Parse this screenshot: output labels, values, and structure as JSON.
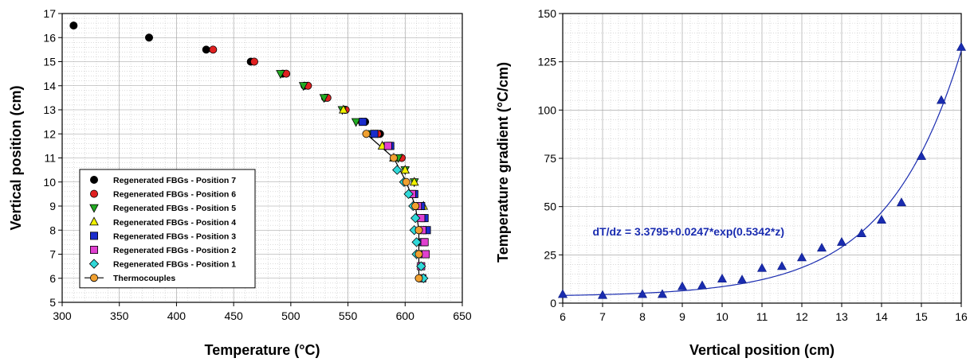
{
  "chart_data": [
    {
      "type": "scatter",
      "title": "",
      "xlabel": "Temperature (°C)",
      "ylabel": "Vertical position (cm)",
      "xlim": [
        300,
        650
      ],
      "ylim": [
        5,
        17
      ],
      "xticks": [
        300,
        350,
        400,
        450,
        500,
        550,
        600,
        650
      ],
      "yticks": [
        5,
        6,
        7,
        8,
        9,
        10,
        11,
        12,
        13,
        14,
        15,
        16,
        17
      ],
      "grid": true,
      "legend_position": "bottom-left",
      "series": [
        {
          "name": "Regenerated FBGs - Position 7",
          "marker": "circle",
          "color": "#000000",
          "points": [
            [
              310,
              16.5
            ],
            [
              376,
              16
            ],
            [
              426,
              15.5
            ],
            [
              465,
              15
            ],
            [
              493,
              14.5
            ],
            [
              512,
              14
            ],
            [
              530,
              13.5
            ],
            [
              547,
              13
            ],
            [
              565,
              12.5
            ],
            [
              578,
              12
            ]
          ]
        },
        {
          "name": "Regenerated FBGs - Position 6",
          "marker": "circle",
          "color": "#e02020",
          "points": [
            [
              432,
              15.5
            ],
            [
              468,
              15
            ],
            [
              496,
              14.5
            ],
            [
              515,
              14
            ],
            [
              532,
              13.5
            ],
            [
              548,
              13
            ],
            [
              562,
              12.5
            ],
            [
              576,
              12
            ],
            [
              587,
              11.5
            ],
            [
              597,
              11
            ]
          ]
        },
        {
          "name": "Regenerated FBGs - Position 5",
          "marker": "triangle-down",
          "color": "#22aa22",
          "points": [
            [
              491,
              14.5
            ],
            [
              511,
              14
            ],
            [
              529,
              13.5
            ],
            [
              545,
              13
            ],
            [
              557,
              12.5
            ],
            [
              571,
              12
            ],
            [
              583,
              11.5
            ],
            [
              594,
              11
            ],
            [
              600,
              10.5
            ],
            [
              608,
              10
            ]
          ]
        },
        {
          "name": "Regenerated FBGs - Position 4",
          "marker": "triangle-up",
          "color": "#f0f000",
          "points": [
            [
              546,
              13
            ],
            [
              580,
              11.5
            ],
            [
              590,
              11
            ],
            [
              600,
              10.5
            ],
            [
              608,
              10
            ],
            [
              616,
              9
            ]
          ]
        },
        {
          "name": "Regenerated FBGs - Position 3",
          "marker": "square",
          "color": "#1a2ccc",
          "points": [
            [
              563,
              12.5
            ],
            [
              573,
              12
            ],
            [
              587,
              11.5
            ],
            [
              608,
              9.5
            ],
            [
              614,
              9
            ],
            [
              617,
              8.5
            ],
            [
              619,
              8
            ],
            [
              616,
              7.5
            ],
            [
              616,
              7
            ]
          ]
        },
        {
          "name": "Regenerated FBGs - Position 2",
          "marker": "square",
          "color": "#e040d0",
          "points": [
            [
              585,
              11.5
            ],
            [
              606,
              9.5
            ],
            [
              611,
              9
            ],
            [
              614,
              8.5
            ],
            [
              615,
              8
            ],
            [
              617,
              7.5
            ],
            [
              618,
              7
            ],
            [
              614,
              6.5
            ],
            [
              615,
              6
            ]
          ]
        },
        {
          "name": "Regenerated FBGs - Position 1",
          "marker": "diamond",
          "color": "#30d8d8",
          "points": [
            [
              593,
              10.5
            ],
            [
              599,
              10
            ],
            [
              603,
              9.5
            ],
            [
              607,
              9
            ],
            [
              609,
              8.5
            ],
            [
              608,
              8
            ],
            [
              610,
              7.5
            ],
            [
              610,
              7
            ],
            [
              614,
              6.5
            ],
            [
              616,
              6
            ]
          ]
        },
        {
          "name": "Thermocouples",
          "marker": "circle",
          "color": "#f0a030",
          "line": true,
          "points": [
            [
              566,
              12
            ],
            [
              590,
              11
            ],
            [
              601,
              10
            ],
            [
              609,
              9
            ],
            [
              612,
              8
            ],
            [
              612,
              7
            ],
            [
              612,
              6
            ]
          ]
        }
      ]
    },
    {
      "type": "scatter",
      "title": "",
      "xlabel": "Vertical position (cm)",
      "ylabel": "Temperature gradient (°C/cm)",
      "xlim": [
        6,
        16
      ],
      "ylim": [
        0,
        150
      ],
      "xticks": [
        6,
        7,
        8,
        9,
        10,
        11,
        12,
        13,
        14,
        15,
        16
      ],
      "yticks": [
        0,
        25,
        50,
        75,
        100,
        125,
        150
      ],
      "grid": true,
      "annotation": "dT/dz = 3.3795+0.0247*exp(0.5342*z)",
      "fit": {
        "a": 3.3795,
        "b": 0.0247,
        "c": 0.5342
      },
      "marker_color": "#1a2cb0",
      "points": [
        [
          6,
          4.5
        ],
        [
          7,
          4
        ],
        [
          8,
          4.5
        ],
        [
          8.5,
          4.5
        ],
        [
          9,
          8.5
        ],
        [
          9.5,
          9
        ],
        [
          10,
          12.5
        ],
        [
          10.5,
          12
        ],
        [
          11,
          18
        ],
        [
          11.5,
          19
        ],
        [
          12,
          23.5
        ],
        [
          12.5,
          28.5
        ],
        [
          13,
          31.5
        ],
        [
          13.5,
          36
        ],
        [
          14,
          43
        ],
        [
          14.5,
          52
        ],
        [
          15,
          76
        ],
        [
          15.5,
          105
        ],
        [
          16,
          132.5
        ]
      ]
    }
  ]
}
